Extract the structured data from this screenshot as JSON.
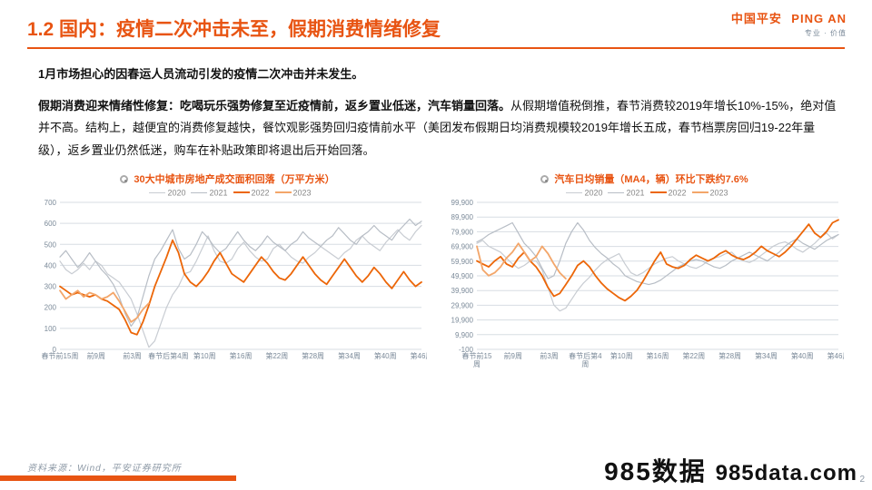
{
  "brand": {
    "cn": "中国平安",
    "en": "PING AN",
    "sub": "专业 · 价值"
  },
  "title": "1.2  国内：疫情二次冲击未至，假期消费情绪修复",
  "para1": "1月市场担心的因春运人员流动引发的疫情二次冲击并未发生。",
  "para2_bold": "假期消费迎来情绪性修复：吃喝玩乐强势修复至近疫情前，返乡置业低迷，汽车销量回落。",
  "para2_rest": "从假期增值税倒推，春节消费较2019年增长10%-15%，绝对值并不高。结构上，越便宜的消费修复越快，餐饮观影强势回归疫情前水平（美团发布假期日均消费规模较2019年增长五成，春节档票房回归19-22年量级），返乡置业仍然低迷，购车在补贴政策即将退出后开始回落。",
  "source": "资料来源：Wind，平安证券研究所",
  "page_number": "2",
  "watermark": {
    "main": "985数据",
    "sub": "985data.com"
  },
  "legend_labels": [
    "2020",
    "2021",
    "2022",
    "2023"
  ],
  "series_colors": {
    "2020": "#c8ccd2",
    "2021": "#b7bdc5",
    "2022": "#ec6608",
    "2023": "#f3a66a"
  },
  "background_color": "#ffffff",
  "grid_color": "#d7dde3",
  "axis_label_color": "#7b8a99",
  "axis_fontsize": 8,
  "chart_title_color": "#e85412",
  "chart_left": {
    "title": "30大中城市房地产成交面积回落（万平方米）",
    "ylim": [
      0,
      700
    ],
    "ytick_step": 100,
    "yticks": [
      0,
      100,
      200,
      300,
      400,
      500,
      600,
      700
    ],
    "x_labels": [
      "春节前15周",
      "前9周",
      "前3周",
      "春节后第4周",
      "第10周",
      "第16周",
      "第22周",
      "第28周",
      "第34周",
      "第40周",
      "第46周"
    ],
    "n_points": 62,
    "line_width_thin": 1.2,
    "line_width_bold": 1.8,
    "series": {
      "2020": [
        420,
        380,
        360,
        380,
        410,
        380,
        420,
        400,
        360,
        340,
        320,
        280,
        240,
        170,
        90,
        10,
        40,
        120,
        200,
        260,
        300,
        360,
        370,
        420,
        480,
        540,
        470,
        420,
        410,
        430,
        480,
        510,
        470,
        440,
        420,
        430,
        480,
        500,
        470,
        440,
        420,
        410,
        440,
        460,
        490,
        470,
        450,
        430,
        460,
        480,
        520,
        540,
        510,
        490,
        470,
        510,
        540,
        570,
        540,
        520,
        560,
        590
      ],
      "2021": [
        440,
        470,
        430,
        390,
        420,
        460,
        420,
        380,
        350,
        310,
        250,
        170,
        110,
        150,
        250,
        350,
        430,
        470,
        520,
        570,
        480,
        430,
        450,
        500,
        560,
        530,
        490,
        460,
        480,
        520,
        560,
        520,
        490,
        470,
        500,
        540,
        510,
        490,
        470,
        500,
        520,
        560,
        530,
        510,
        490,
        520,
        540,
        580,
        550,
        520,
        500,
        540,
        560,
        590,
        560,
        540,
        520,
        560,
        590,
        620,
        590,
        610
      ],
      "2022": [
        300,
        280,
        260,
        270,
        260,
        250,
        260,
        240,
        230,
        210,
        190,
        140,
        80,
        70,
        130,
        210,
        300,
        370,
        440,
        520,
        460,
        360,
        320,
        300,
        330,
        370,
        420,
        460,
        410,
        360,
        340,
        320,
        360,
        400,
        440,
        410,
        370,
        340,
        330,
        360,
        400,
        440,
        400,
        360,
        330,
        310,
        350,
        390,
        430,
        390,
        350,
        320,
        350,
        390,
        360,
        320,
        290,
        330,
        370,
        330,
        300,
        320
      ],
      "2023": [
        280,
        240,
        260,
        280,
        250,
        270,
        260,
        240,
        250,
        270,
        230,
        180,
        130,
        150,
        190,
        220
      ]
    }
  },
  "chart_right": {
    "title": "汽车日均销量（MA4，辆）环比下跌约7.6%",
    "ylim": [
      -100,
      99900
    ],
    "yticks": [
      -100,
      9900,
      19900,
      29900,
      39900,
      49900,
      59900,
      69900,
      79900,
      89900,
      99900
    ],
    "x_labels": [
      "春节前15\n周",
      "前9周",
      "前3周",
      "春节后第4\n周",
      "第10周",
      "第16周",
      "第22周",
      "第28周",
      "第34周",
      "第40周",
      "第46周"
    ],
    "n_points": 62,
    "line_width_thin": 1.2,
    "line_width_bold": 1.8,
    "series": {
      "2020": [
        72000,
        74000,
        70000,
        68000,
        66000,
        62000,
        58000,
        55000,
        57000,
        60000,
        60000,
        54000,
        42000,
        30000,
        26000,
        28000,
        34000,
        40000,
        45000,
        49000,
        54000,
        58000,
        61000,
        63000,
        65000,
        58000,
        52000,
        50000,
        52000,
        55000,
        58000,
        60000,
        62000,
        63000,
        60000,
        58000,
        56000,
        55000,
        57000,
        60000,
        62000,
        63000,
        65000,
        66000,
        62000,
        60000,
        59000,
        61000,
        64000,
        67000,
        70000,
        72000,
        73000,
        71000,
        68000,
        66000,
        69000,
        72000,
        76000,
        79000,
        75000,
        78000
      ],
      "2021": [
        73000,
        75000,
        78000,
        80000,
        82000,
        84000,
        86000,
        79000,
        72000,
        68000,
        63000,
        55000,
        48000,
        50000,
        60000,
        72000,
        80000,
        86000,
        81000,
        74000,
        69000,
        65000,
        62000,
        58000,
        55000,
        50000,
        48000,
        46000,
        45000,
        44000,
        45000,
        47000,
        50000,
        53000,
        56000,
        58000,
        60000,
        61000,
        60000,
        58000,
        56000,
        55000,
        57000,
        60000,
        62000,
        64000,
        66000,
        64000,
        62000,
        60000,
        63000,
        66000,
        70000,
        73000,
        75000,
        72000,
        70000,
        68000,
        71000,
        74000,
        76000,
        78000
      ],
      "2022": [
        60000,
        58000,
        56000,
        60000,
        63000,
        58000,
        56000,
        62000,
        66000,
        60000,
        56000,
        50000,
        42000,
        36000,
        38000,
        44000,
        50000,
        57000,
        60000,
        56000,
        50000,
        45000,
        41000,
        38000,
        35000,
        33000,
        36000,
        40000,
        46000,
        53000,
        60000,
        66000,
        58000,
        56000,
        55000,
        57000,
        61000,
        64000,
        62000,
        60000,
        62000,
        65000,
        67000,
        64000,
        62000,
        61000,
        63000,
        66000,
        70000,
        67000,
        65000,
        63000,
        66000,
        70000,
        75000,
        80000,
        85000,
        79000,
        76000,
        80000,
        86000,
        88000
      ],
      "2023": [
        70000,
        54000,
        50000,
        52000,
        56000,
        62000,
        66000,
        72000,
        66000,
        60000,
        63000,
        70000,
        65000,
        58000,
        52000,
        48000
      ]
    }
  }
}
